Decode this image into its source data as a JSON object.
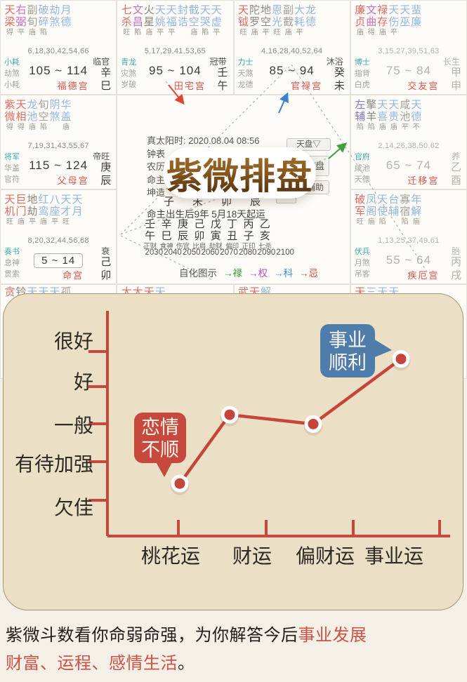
{
  "title_seal": "紫微排盘",
  "center": {
    "info_lines": [
      "真太阳时: 2020.08.04 08:56",
      "钟表",
      "农历",
      "命主",
      "坤造"
    ],
    "branch_row": [
      "子",
      "未",
      "卯",
      "辰"
    ],
    "qiyun": "命主出生后9年 5月18天起运",
    "stems": [
      "壬",
      "辛",
      "庚",
      "己",
      "戊",
      "丁",
      "丙",
      "乙"
    ],
    "branches": [
      "午",
      "巳",
      "辰",
      "卯",
      "寅",
      "丑",
      "子",
      "亥"
    ],
    "ten_gods": [
      "正财",
      "食神",
      "伤官",
      "比肩",
      "劫财",
      "偏印",
      "正印",
      "七杀"
    ],
    "years": [
      "2030",
      "2040",
      "2050",
      "2060",
      "2070",
      "2080",
      "2090",
      "2100"
    ],
    "sihua_label": "自化图示",
    "sihua": [
      {
        "t": "→禄",
        "c": "#3a9e3c"
      },
      {
        "t": "→权",
        "c": "#b050c8"
      },
      {
        "t": "→科",
        "c": "#3f8fe0"
      },
      {
        "t": "→忌",
        "c": "#e04438"
      }
    ],
    "buttons": [
      "天盘▽",
      "盘",
      "辅助"
    ]
  },
  "palaces": [
    {
      "name": "福德宫",
      "stars": [
        [
          "天",
          "梁",
          "得",
          "red"
        ],
        [
          "右",
          "弼",
          "平",
          "mag"
        ],
        [
          "副",
          "旬",
          "庙",
          "gray"
        ],
        [
          "破",
          "碎",
          "陷",
          "blue"
        ],
        [
          "劫",
          "煞",
          "",
          "blue"
        ],
        [
          "月",
          "德",
          "",
          "blue"
        ]
      ],
      "nums": "6,18,30,42,54,66",
      "gods": [
        [
          "小耗",
          "teal"
        ],
        [
          "劫煞",
          "gray"
        ],
        [
          "小耗",
          "gray"
        ]
      ],
      "stage": "临官",
      "range": "105 ~ 114",
      "stem": "辛",
      "branch": "巳",
      "boxed": false,
      "dim": false
    },
    {
      "name": "田宅宫",
      "stars": [
        [
          "七",
          "杀",
          "旺",
          "red"
        ],
        [
          "文",
          "昌",
          "陷",
          "mag"
        ],
        [
          "火",
          "星",
          "庙",
          "dark"
        ],
        [
          "天",
          "姚",
          "平",
          "blue"
        ],
        [
          "天",
          "福",
          "平",
          "blue"
        ],
        [
          "封",
          "诰",
          "",
          "blue"
        ],
        [
          "截",
          "空",
          "庙",
          "blue"
        ],
        [
          "天",
          "哭",
          "陷",
          "blue"
        ],
        [
          "天",
          "虚",
          "平",
          "blue"
        ]
      ],
      "nums": "5,17,29,41,53,65",
      "gods": [
        [
          "青龙",
          "teal"
        ],
        [
          "灾煞",
          "gray"
        ],
        [
          "岁破",
          "gray"
        ]
      ],
      "stage": "冠带",
      "range": "95 ~ 104",
      "stem": "壬",
      "branch": "午",
      "boxed": false,
      "dim": false
    },
    {
      "name": "官禄宫",
      "stars": [
        [
          "天",
          "钺",
          "旺",
          "red"
        ],
        [
          "陀",
          "罗",
          "庙",
          "dark"
        ],
        [
          "地",
          "空",
          "平",
          "dark"
        ],
        [
          "恩",
          "光",
          "旺",
          "blue"
        ],
        [
          "副",
          "截",
          "庙",
          "gray"
        ],
        [
          "大",
          "耗",
          "平",
          "blue"
        ],
        [
          "龙",
          "德",
          "",
          "blue"
        ]
      ],
      "nums": "4,16,28,40,52,64",
      "gods": [
        [
          "力士",
          "teal"
        ],
        [
          "天煞",
          "gray"
        ],
        [
          "龙德",
          "gray"
        ]
      ],
      "stage": "沐浴",
      "range": "85 ~ 94",
      "stem": "癸",
      "branch": "未",
      "boxed": false,
      "dim": false
    },
    {
      "name": "交友宫",
      "stars": [
        [
          "廉",
          "贞",
          "庙",
          "red"
        ],
        [
          "文",
          "曲",
          "得",
          "mag"
        ],
        [
          "禄",
          "存",
          "庙",
          "red"
        ],
        [
          "天",
          "伤",
          "平",
          "blue"
        ],
        [
          "天",
          "巫",
          "",
          "blue"
        ],
        [
          "蜚",
          "廉",
          "",
          "blue"
        ]
      ],
      "nums": "3,15,27,39,51,63",
      "gods": [
        [
          "博士",
          "teal"
        ],
        [
          "指背",
          "gray"
        ],
        [
          "白虎",
          "gray"
        ]
      ],
      "stage": "长生",
      "range": "75 ~ 84",
      "stem": "甲",
      "branch": "申",
      "boxed": false,
      "dim": true
    },
    {
      "name": "父母宫",
      "stars": [
        [
          "紫",
          "微",
          "得",
          "red"
        ],
        [
          "天",
          "相",
          "得",
          "red"
        ],
        [
          "龙",
          "池",
          "庙",
          "blue"
        ],
        [
          "旬",
          "空",
          "陷",
          "gray"
        ],
        [
          "阴",
          "煞",
          "",
          "blue"
        ],
        [
          "华",
          "盖",
          "庙",
          "blue"
        ]
      ],
      "nums": "7,19,31,43,55,67",
      "gods": [
        [
          "将军",
          "teal"
        ],
        [
          "华盖",
          "gray"
        ],
        [
          "官符",
          "gray"
        ]
      ],
      "stage": "帝旺",
      "range": "115 ~ 124",
      "stem": "庚",
      "branch": "辰",
      "boxed": false,
      "dim": false
    },
    {
      "name": "迁移宫",
      "stars": [
        [
          "左",
          "辅",
          "陷",
          "navy"
        ],
        [
          "擎",
          "羊",
          "陷",
          "dark"
        ],
        [
          "天",
          "喜",
          "庙",
          "blue"
        ],
        [
          "天",
          "贵",
          "庙",
          "blue"
        ],
        [
          "咸",
          "池",
          "平",
          "gray"
        ],
        [
          "天",
          "德",
          "不",
          "blue"
        ]
      ],
      "nums": "2,14,26,38,50,62",
      "gods": [
        [
          "官府",
          "teal"
        ],
        [
          "咸池",
          "gray"
        ],
        [
          "天德",
          "gray"
        ]
      ],
      "stage": "养",
      "range": "65 ~ 74",
      "stem": "乙",
      "branch": "酉",
      "boxed": false,
      "dim": true
    },
    {
      "name": "命宫",
      "stars": [
        [
          "天",
          "机",
          "旺",
          "red"
        ],
        [
          "巨",
          "门",
          "庙",
          "red"
        ],
        [
          "地",
          "劫",
          "平",
          "dark"
        ],
        [
          "红",
          "鸾",
          "庙",
          "blue"
        ],
        [
          "八",
          "座",
          "平",
          "blue"
        ],
        [
          "天",
          "才",
          "旺",
          "blue"
        ],
        [
          "天",
          "月",
          "",
          "blue"
        ]
      ],
      "nums": "8,20,32,44,56,68",
      "gods": [
        [
          "奏书",
          "teal"
        ],
        [
          "息神",
          "gray"
        ],
        [
          "贯索",
          "gray"
        ]
      ],
      "stage": "衰",
      "range": "5 ~ 14",
      "stem": "己",
      "branch": "卯",
      "boxed": true,
      "dim": false
    },
    {
      "name": "疾厄宫",
      "stars": [
        [
          "破",
          "军",
          "旺",
          "red"
        ],
        [
          "凤",
          "阁",
          "庙",
          "blue"
        ],
        [
          "天",
          "使",
          "陷",
          "blue"
        ],
        [
          "台",
          "辅",
          "",
          "blue"
        ],
        [
          "寡",
          "宿",
          "陷",
          "gray"
        ],
        [
          "年",
          "解",
          "庙",
          "blue"
        ]
      ],
      "nums": "1,13,25,37,49,61",
      "gods": [
        [
          "伏兵",
          "teal"
        ],
        [
          "月煞",
          "gray"
        ],
        [
          "吊客",
          "gray"
        ]
      ],
      "stage": "胎",
      "range": "55 ~ 64",
      "stem": "丙",
      "branch": "戌",
      "boxed": false,
      "dim": true
    }
  ],
  "palaces_bottom": [
    {
      "chars": [
        [
          "贪",
          "red"
        ],
        [
          "铃",
          "dark"
        ],
        [
          "天",
          "blue"
        ],
        [
          "天",
          "blue"
        ],
        [
          "天",
          "blue"
        ],
        [
          "孤",
          "gray"
        ]
      ]
    },
    {
      "chars": [
        [
          "太",
          "red"
        ],
        [
          "太",
          "red"
        ],
        [
          "天",
          "red"
        ],
        [
          "天",
          "blue"
        ]
      ]
    },
    {
      "chars": [
        [
          "武",
          "red"
        ],
        [
          "天",
          "red"
        ],
        [
          "解",
          "blue"
        ]
      ]
    },
    {
      "chars": [
        [
          "天",
          "red"
        ],
        [
          "三",
          "blue"
        ],
        [
          "天",
          "blue"
        ],
        [
          "天",
          "blue"
        ]
      ]
    }
  ],
  "chart_data": {
    "type": "line",
    "categories": [
      "桃花运",
      "财运",
      "偏财运",
      "事业运"
    ],
    "values": [
      1.45,
      3.3,
      3.05,
      4.8
    ],
    "level_labels": [
      "欠佳",
      "有待加强",
      "一般",
      "好",
      "很好"
    ],
    "ylim": [
      1,
      5
    ],
    "line_color": "#c6453a",
    "axis_color": "#c7493d",
    "annotations": [
      {
        "point": 0,
        "lines": [
          "恋情",
          "不顺"
        ],
        "color": "#c7493d"
      },
      {
        "point": 3,
        "lines": [
          "事业",
          "顺利"
        ],
        "color": "#4f7dab"
      }
    ]
  },
  "footer": {
    "line1_black": "紫微斗数看你命弱命强，为你解答今后",
    "line1_red": "事业发展",
    "line2_red": "财富、运程、感情生活",
    "line2_black": "。"
  }
}
